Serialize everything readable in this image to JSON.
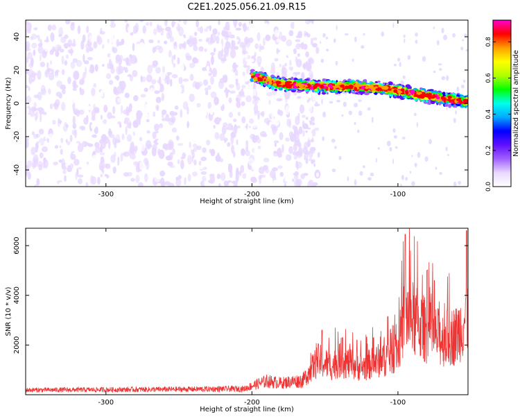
{
  "title": "C2E1.2025.056.21.09.R15",
  "chart_data": [
    {
      "type": "heatmap",
      "name": "spectrogram",
      "xlabel": "Height of straight line (km)",
      "ylabel": "Frequency (Hz)",
      "xlim": [
        -355,
        -52
      ],
      "ylim": [
        -50,
        50
      ],
      "xticks": [
        -300,
        -200,
        -100
      ],
      "yticks": [
        -40,
        -20,
        0,
        20,
        40
      ],
      "colorbar": {
        "label": "Normalized spectral amplitude",
        "range": [
          0,
          0.92
        ],
        "ticks": [
          "0.0",
          "0.2",
          "0.4",
          "0.6",
          "0.8"
        ],
        "tick_values": [
          0,
          0.2,
          0.4,
          0.6,
          0.8
        ],
        "colors": [
          "#ffffff",
          "#e8d8ff",
          "#a060ff",
          "#6010ff",
          "#0000ff",
          "#00aaff",
          "#00ffee",
          "#00ff00",
          "#b0ff00",
          "#ffff00",
          "#ffa000",
          "#ff0000",
          "#ff00cc"
        ]
      },
      "ridge": {
        "points": [
          [
            -200,
            17
          ],
          [
            -185,
            12
          ],
          [
            -170,
            11
          ],
          [
            -150,
            10
          ],
          [
            -130,
            10
          ],
          [
            -110,
            9
          ],
          [
            -90,
            6
          ],
          [
            -70,
            3
          ],
          [
            -52,
            1
          ]
        ],
        "half_width_hz": 4
      },
      "noise_region_x": [
        -355,
        -165
      ]
    },
    {
      "type": "line",
      "name": "snr",
      "xlabel": "Height of straight line (km)",
      "ylabel": "SNR (10 * v/v)",
      "xlim": [
        -355,
        -52
      ],
      "ylim": [
        0,
        6700
      ],
      "xticks": [
        -300,
        -200,
        -100
      ],
      "yticks": [
        2000,
        4000,
        6000
      ],
      "color": "#ee3333",
      "envelope": [
        [
          -355,
          260
        ],
        [
          -300,
          280
        ],
        [
          -250,
          300
        ],
        [
          -205,
          330
        ],
        [
          -200,
          500
        ],
        [
          -190,
          750
        ],
        [
          -180,
          650
        ],
        [
          -165,
          800
        ],
        [
          -155,
          1900
        ],
        [
          -145,
          1600
        ],
        [
          -140,
          1900
        ],
        [
          -125,
          1500
        ],
        [
          -110,
          2000
        ],
        [
          -100,
          2500
        ],
        [
          -95,
          4500
        ],
        [
          -90,
          4200
        ],
        [
          -80,
          3500
        ],
        [
          -70,
          3100
        ],
        [
          -60,
          3300
        ],
        [
          -52,
          4500
        ]
      ],
      "peaks": [
        [
          -152,
          2600
        ],
        [
          -138,
          2300
        ],
        [
          -128,
          2200
        ],
        [
          -95,
          6450
        ],
        [
          -80,
          5000
        ],
        [
          -75,
          4600
        ],
        [
          -53,
          6600
        ]
      ]
    }
  ]
}
